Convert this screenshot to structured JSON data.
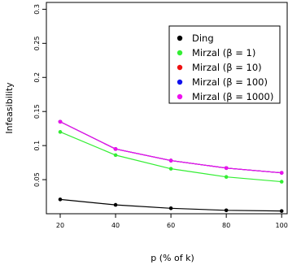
{
  "chart_data": {
    "type": "line",
    "xlabel": "p (% of k)",
    "ylabel": "Infeasibility",
    "x": [
      20,
      40,
      60,
      80,
      100
    ],
    "xlim": [
      15,
      102
    ],
    "ylim": [
      0,
      0.31
    ],
    "xticks": [
      20,
      40,
      60,
      80,
      100
    ],
    "yticks": [
      0.05,
      0.1,
      0.15,
      0.2,
      0.25,
      0.3
    ],
    "ytick_labels": [
      "0.05",
      "0.1",
      "0.15",
      "0.2",
      "0.25",
      "0.3"
    ],
    "legend_position": "top-right",
    "series": [
      {
        "name": "Ding",
        "color": "#000000",
        "values": [
          0.021,
          0.013,
          0.008,
          0.005,
          0.004
        ]
      },
      {
        "name": "Mirzal (β = 1)",
        "color": "#33ee33",
        "values": [
          0.12,
          0.086,
          0.066,
          0.054,
          0.047
        ]
      },
      {
        "name": "Mirzal (β = 10)",
        "color": "#ee1111",
        "values": [
          0.135,
          0.095,
          0.078,
          0.067,
          0.06
        ]
      },
      {
        "name": "Mirzal (β = 100)",
        "color": "#1111ee",
        "values": [
          0.135,
          0.095,
          0.078,
          0.067,
          0.06
        ]
      },
      {
        "name": "Mirzal (β = 1000)",
        "color": "#ee11ee",
        "values": [
          0.135,
          0.095,
          0.078,
          0.067,
          0.06
        ]
      }
    ]
  }
}
